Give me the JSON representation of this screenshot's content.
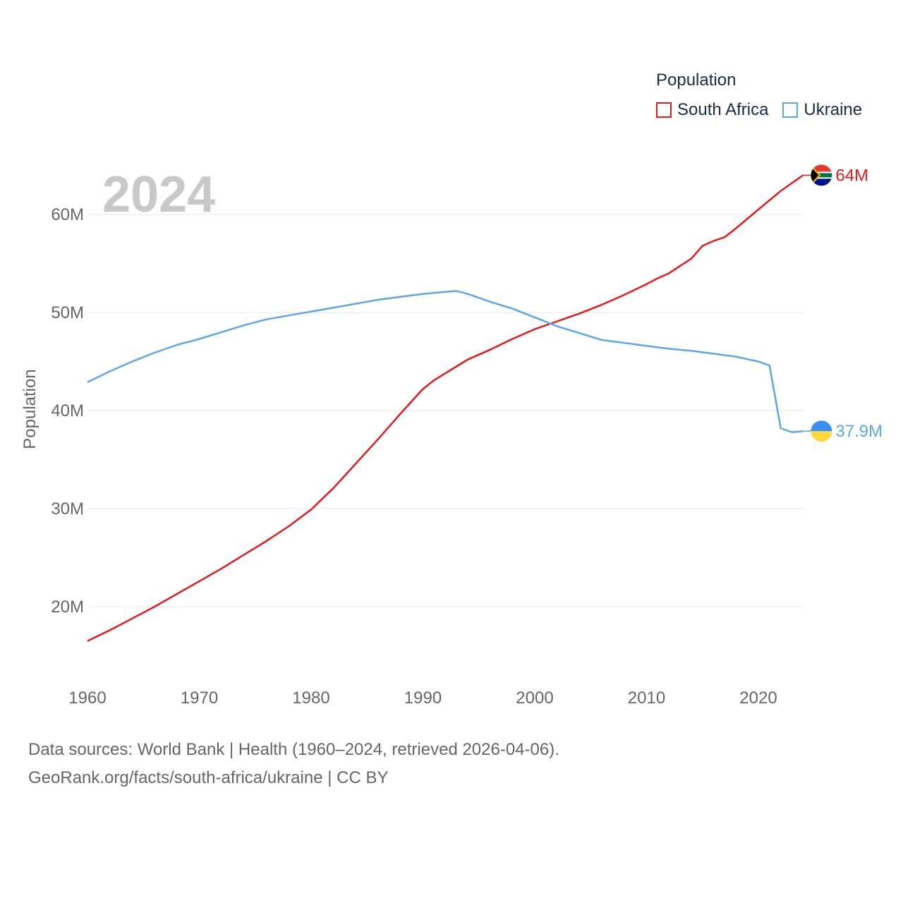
{
  "chart_data": {
    "type": "line",
    "year_label": "2024",
    "ylabel": "Population",
    "xlim": [
      1960,
      2024
    ],
    "ylim": [
      14,
      64
    ],
    "x_ticks": [
      "1960",
      "1970",
      "1980",
      "1990",
      "2000",
      "2010",
      "2020"
    ],
    "y_ticks": [
      "20M",
      "30M",
      "40M",
      "50M",
      "60M"
    ],
    "legend_title": "Population",
    "series": [
      {
        "name": "South Africa",
        "color": "#e31a1c",
        "end_label": "64M",
        "flag": "south-africa-flag-icon",
        "x": [
          1960,
          1962,
          1964,
          1966,
          1968,
          1970,
          1972,
          1974,
          1976,
          1978,
          1980,
          1982,
          1984,
          1986,
          1988,
          1990,
          1991,
          1992,
          1993,
          1994,
          1996,
          1998,
          2000,
          2002,
          2004,
          2006,
          2008,
          2010,
          2011,
          2012,
          2014,
          2015,
          2016,
          2017,
          2018,
          2020,
          2022,
          2024
        ],
        "values": [
          16.5,
          17.6,
          18.8,
          20.0,
          21.3,
          22.6,
          23.9,
          25.3,
          26.7,
          28.2,
          29.9,
          32.1,
          34.6,
          37.1,
          39.7,
          42.2,
          43.1,
          43.8,
          44.5,
          45.2,
          46.2,
          47.3,
          48.3,
          49.1,
          49.9,
          50.8,
          51.8,
          52.9,
          53.5,
          54.0,
          55.5,
          56.8,
          57.3,
          57.7,
          58.6,
          60.5,
          62.4,
          64.0
        ]
      },
      {
        "name": "Ukraine",
        "color": "#5da5e8",
        "end_label": "37.9M",
        "flag": "ukraine-flag-icon",
        "x": [
          1960,
          1962,
          1964,
          1966,
          1968,
          1970,
          1972,
          1974,
          1976,
          1978,
          1980,
          1982,
          1984,
          1986,
          1988,
          1990,
          1992,
          1993,
          1994,
          1996,
          1998,
          2000,
          2002,
          2004,
          2006,
          2008,
          2010,
          2012,
          2014,
          2016,
          2018,
          2020,
          2021,
          2022,
          2023,
          2024
        ],
        "values": [
          42.9,
          44.0,
          45.0,
          45.9,
          46.7,
          47.3,
          48.0,
          48.7,
          49.3,
          49.7,
          50.1,
          50.5,
          50.9,
          51.3,
          51.6,
          51.9,
          52.1,
          52.2,
          51.9,
          51.1,
          50.4,
          49.5,
          48.6,
          47.9,
          47.2,
          46.9,
          46.6,
          46.3,
          46.1,
          45.8,
          45.5,
          45.0,
          44.6,
          38.2,
          37.8,
          37.9
        ]
      }
    ]
  },
  "footer": {
    "line1": "Data sources: World Bank | Health (1960–2024, retrieved 2026-04-06).",
    "line2": "GeoRank.org/facts/south-africa/ukraine | CC BY"
  }
}
